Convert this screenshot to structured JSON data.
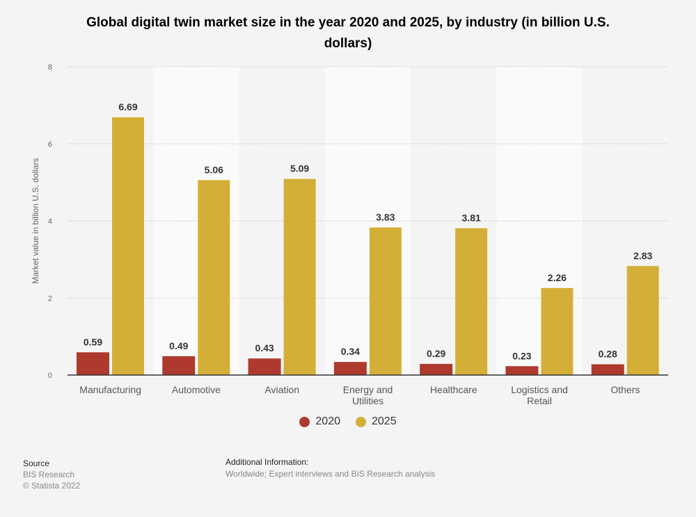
{
  "chart_data": {
    "type": "bar",
    "title": "Global digital twin market size in the year 2020 and 2025, by industry (in billion U.S. dollars)",
    "xlabel": "",
    "ylabel": "Market value in billion U.S. dollars",
    "ylim": [
      0,
      8
    ],
    "yticks": [
      0,
      2,
      4,
      6,
      8
    ],
    "grid": true,
    "legend_position": "bottom",
    "categories": [
      "Manufacturing",
      "Automotive",
      "Aviation",
      "Energy and Utilities",
      "Healthcare",
      "Logistics and Retail",
      "Others"
    ],
    "series": [
      {
        "name": "2020",
        "color": "#ae3a2e",
        "values": [
          0.59,
          0.49,
          0.43,
          0.34,
          0.29,
          0.23,
          0.28
        ]
      },
      {
        "name": "2025",
        "color": "#d4af37",
        "values": [
          6.69,
          5.06,
          5.09,
          3.83,
          3.81,
          2.26,
          2.83
        ]
      }
    ]
  },
  "footer": {
    "source_label": "Source",
    "source": "BIS Research",
    "copyright": "© Statista 2022",
    "additional_label": "Additional Information:",
    "additional": "Worldwide; Expert interviews and BIS Research analysis"
  }
}
